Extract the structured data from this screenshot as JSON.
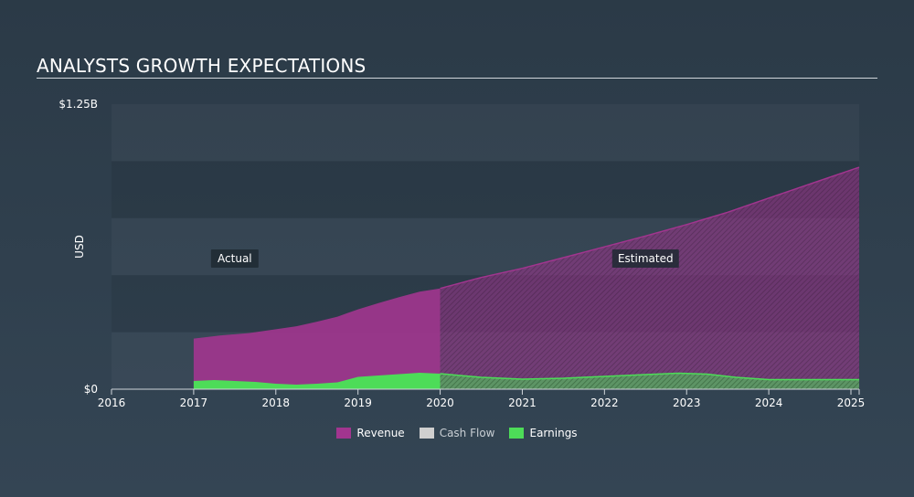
{
  "header": {
    "title": "ANALYSTS GROWTH EXPECTATIONS"
  },
  "chart_data": {
    "type": "area",
    "ylabel": "USD",
    "ylim": [
      0,
      1.25
    ],
    "y_unit": "B",
    "y_tick_labels": [
      {
        "value": 1.25,
        "label": "$1.25B"
      },
      {
        "value": 0,
        "label": "$0"
      }
    ],
    "x_range": [
      2016,
      2025.1
    ],
    "x_ticks": [
      2016,
      2017,
      2018,
      2019,
      2020,
      2021,
      2022,
      2023,
      2024,
      2025
    ],
    "divider_x": 2020,
    "annotations": [
      {
        "text": "Actual",
        "x": 2017.5
      },
      {
        "text": "Estimated",
        "x": 2022.5
      }
    ],
    "series": [
      {
        "name": "Revenue",
        "color": "#a2358f",
        "points": [
          [
            2017.0,
            0.222
          ],
          [
            2017.33,
            0.236
          ],
          [
            2017.67,
            0.246
          ],
          [
            2018.0,
            0.263
          ],
          [
            2018.25,
            0.276
          ],
          [
            2018.5,
            0.296
          ],
          [
            2018.75,
            0.318
          ],
          [
            2019.0,
            0.35
          ],
          [
            2019.25,
            0.378
          ],
          [
            2019.5,
            0.404
          ],
          [
            2019.75,
            0.428
          ],
          [
            2020.0,
            0.442
          ],
          [
            2020.5,
            0.49
          ],
          [
            2021.0,
            0.53
          ],
          [
            2021.5,
            0.577
          ],
          [
            2022.0,
            0.624
          ],
          [
            2022.5,
            0.672
          ],
          [
            2023.0,
            0.722
          ],
          [
            2023.5,
            0.776
          ],
          [
            2024.0,
            0.838
          ],
          [
            2024.5,
            0.9
          ],
          [
            2025.1,
            0.973
          ]
        ]
      },
      {
        "name": "Cash Flow",
        "color": "#cfcfcf",
        "points": []
      },
      {
        "name": "Earnings",
        "color": "#4ddc58",
        "points": [
          [
            2017.0,
            0.036
          ],
          [
            2017.25,
            0.04
          ],
          [
            2017.5,
            0.036
          ],
          [
            2017.75,
            0.032
          ],
          [
            2018.0,
            0.024
          ],
          [
            2018.25,
            0.02
          ],
          [
            2018.5,
            0.024
          ],
          [
            2018.75,
            0.03
          ],
          [
            2019.0,
            0.054
          ],
          [
            2019.25,
            0.06
          ],
          [
            2019.5,
            0.066
          ],
          [
            2019.75,
            0.072
          ],
          [
            2020.0,
            0.068
          ],
          [
            2020.5,
            0.052
          ],
          [
            2021.0,
            0.044
          ],
          [
            2021.5,
            0.048
          ],
          [
            2022.0,
            0.056
          ],
          [
            2022.5,
            0.064
          ],
          [
            2022.9,
            0.07
          ],
          [
            2023.25,
            0.066
          ],
          [
            2023.6,
            0.052
          ],
          [
            2024.0,
            0.042
          ],
          [
            2024.5,
            0.042
          ],
          [
            2025.1,
            0.042
          ]
        ]
      }
    ]
  }
}
